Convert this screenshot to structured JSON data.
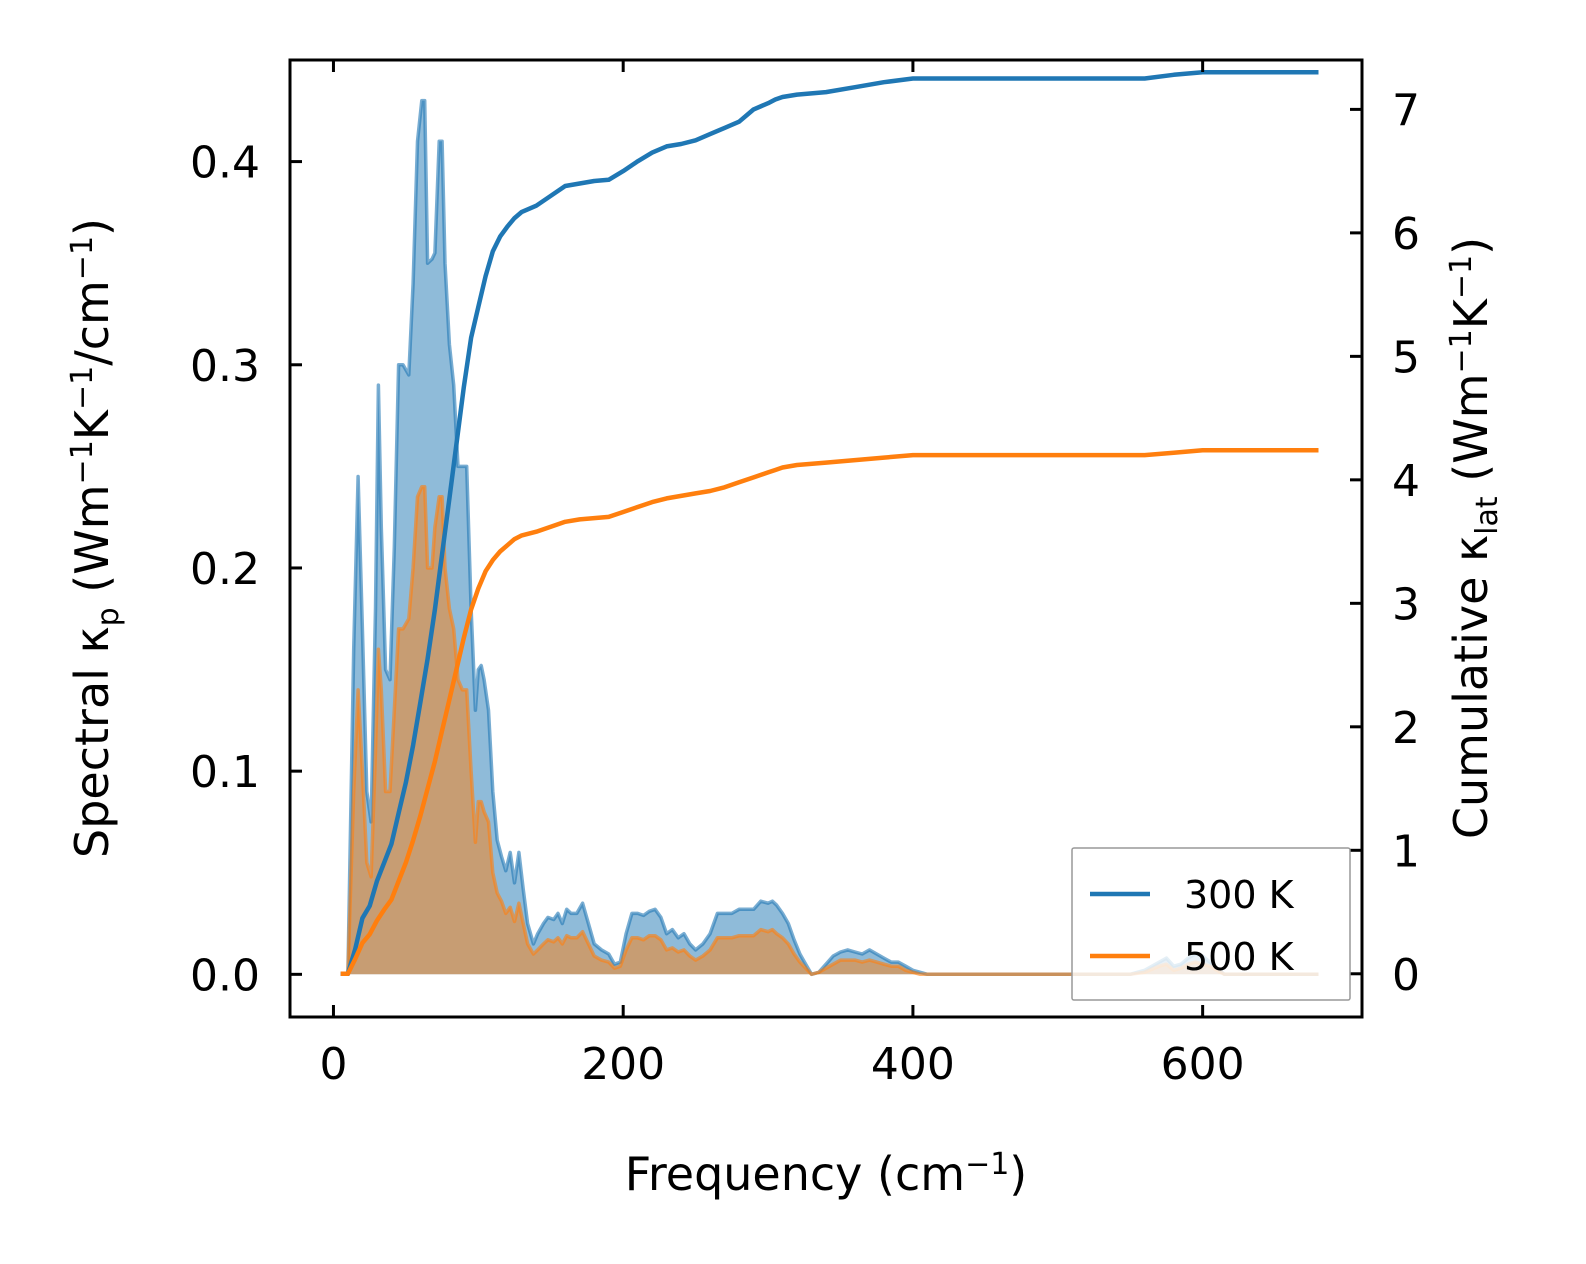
{
  "chart_data": {
    "type": "line",
    "xlabel": "Frequency (cm",
    "xlabel_sup": "−1",
    "xlabel_tail": ")",
    "xlim": [
      -30,
      710
    ],
    "x_ticks": [
      0,
      200,
      400,
      600
    ],
    "x_tick_labels": [
      "0",
      "200",
      "400",
      "600"
    ],
    "left_axis": {
      "label_parts": [
        {
          "t": "Spectral κ"
        },
        {
          "t": "p",
          "sub": true
        },
        {
          "t": " (Wm"
        },
        {
          "t": "−1",
          "sup": true
        },
        {
          "t": "K"
        },
        {
          "t": "−1",
          "sup": true
        },
        {
          "t": "/cm"
        },
        {
          "t": "−1",
          "sup": true
        },
        {
          "t": ")"
        }
      ],
      "ylim": [
        -0.021,
        0.45
      ],
      "ticks": [
        0.0,
        0.1,
        0.2,
        0.3,
        0.4
      ],
      "tick_labels": [
        "0.0",
        "0.1",
        "0.2",
        "0.3",
        "0.4"
      ]
    },
    "right_axis": {
      "label_parts": [
        {
          "t": "Cumulative κ"
        },
        {
          "t": "lat",
          "sub": true
        },
        {
          "t": " (Wm"
        },
        {
          "t": "−1",
          "sup": true
        },
        {
          "t": "K"
        },
        {
          "t": "−1",
          "sup": true
        },
        {
          "t": ")"
        }
      ],
      "ylim": [
        -0.35,
        7.4
      ],
      "ticks": [
        0,
        1,
        2,
        3,
        4,
        5,
        6,
        7
      ],
      "tick_labels": [
        "0",
        "1",
        "2",
        "3",
        "4",
        "5",
        "6",
        "7"
      ]
    },
    "spectral_series": [
      {
        "name": "300 K",
        "color": "#1f77b4",
        "x": [
          5,
          10,
          14,
          17,
          20,
          23,
          26,
          29,
          31,
          33,
          36,
          39,
          42,
          45,
          48,
          52,
          55,
          58,
          61,
          63,
          65,
          68,
          70,
          73,
          75,
          77,
          80,
          83,
          86,
          89,
          92,
          95,
          98,
          100,
          102,
          104,
          107,
          110,
          113,
          116,
          119,
          122,
          125,
          128,
          131,
          134,
          138,
          141,
          145,
          148,
          152,
          155,
          158,
          161,
          164,
          168,
          172,
          176,
          180,
          185,
          190,
          194,
          198,
          202,
          206,
          210,
          214,
          218,
          222,
          226,
          230,
          234,
          238,
          242,
          246,
          250,
          255,
          260,
          265,
          270,
          275,
          280,
          285,
          290,
          295,
          300,
          303,
          306,
          310,
          314,
          318,
          322,
          326,
          330,
          335,
          340,
          345,
          350,
          355,
          360,
          365,
          370,
          375,
          380,
          385,
          390,
          395,
          400,
          405,
          410,
          415,
          420,
          450,
          500,
          550,
          560,
          570,
          575,
          580,
          585,
          590,
          595,
          600,
          605,
          610,
          615,
          620,
          640,
          660,
          680
        ],
        "values": [
          0.0,
          0.0,
          0.16,
          0.245,
          0.17,
          0.09,
          0.075,
          0.18,
          0.29,
          0.22,
          0.15,
          0.145,
          0.21,
          0.3,
          0.3,
          0.295,
          0.34,
          0.41,
          0.43,
          0.43,
          0.35,
          0.352,
          0.355,
          0.41,
          0.41,
          0.35,
          0.31,
          0.29,
          0.25,
          0.25,
          0.25,
          0.18,
          0.13,
          0.15,
          0.152,
          0.145,
          0.13,
          0.09,
          0.066,
          0.058,
          0.051,
          0.06,
          0.045,
          0.06,
          0.042,
          0.025,
          0.015,
          0.02,
          0.025,
          0.028,
          0.027,
          0.03,
          0.025,
          0.032,
          0.03,
          0.03,
          0.035,
          0.025,
          0.015,
          0.012,
          0.01,
          0.005,
          0.006,
          0.02,
          0.03,
          0.03,
          0.029,
          0.031,
          0.032,
          0.028,
          0.02,
          0.022,
          0.018,
          0.02,
          0.015,
          0.012,
          0.015,
          0.02,
          0.03,
          0.03,
          0.03,
          0.032,
          0.032,
          0.032,
          0.036,
          0.035,
          0.036,
          0.034,
          0.03,
          0.025,
          0.017,
          0.01,
          0.005,
          0.0,
          0.001,
          0.005,
          0.009,
          0.011,
          0.012,
          0.011,
          0.01,
          0.012,
          0.01,
          0.008,
          0.006,
          0.006,
          0.004,
          0.002,
          0.001,
          0.0,
          0.0,
          0.0,
          0.0,
          0.0,
          0.0,
          0.002,
          0.006,
          0.008,
          0.004,
          0.005,
          0.008,
          0.01,
          0.009,
          0.006,
          0.003,
          0.0,
          0.0,
          0.0,
          0.0,
          0.0
        ]
      },
      {
        "name": "500 K",
        "color": "#ff7f0e",
        "x": [
          5,
          10,
          14,
          17,
          20,
          23,
          26,
          29,
          31,
          33,
          36,
          39,
          42,
          45,
          48,
          52,
          55,
          58,
          61,
          63,
          65,
          68,
          70,
          73,
          75,
          77,
          80,
          83,
          86,
          89,
          92,
          95,
          98,
          100,
          102,
          104,
          107,
          110,
          113,
          116,
          119,
          122,
          125,
          128,
          131,
          134,
          138,
          141,
          145,
          148,
          152,
          155,
          158,
          161,
          164,
          168,
          172,
          176,
          180,
          185,
          190,
          194,
          198,
          202,
          206,
          210,
          214,
          218,
          222,
          226,
          230,
          234,
          238,
          242,
          246,
          250,
          255,
          260,
          265,
          270,
          275,
          280,
          285,
          290,
          295,
          300,
          303,
          306,
          310,
          314,
          318,
          322,
          326,
          330,
          335,
          340,
          345,
          350,
          355,
          360,
          365,
          370,
          375,
          380,
          385,
          390,
          395,
          400,
          405,
          410,
          415,
          420,
          450,
          500,
          550,
          560,
          570,
          575,
          580,
          585,
          590,
          595,
          600,
          605,
          610,
          615,
          620,
          640,
          660,
          680
        ],
        "values": [
          0.0,
          0.0,
          0.09,
          0.14,
          0.1,
          0.055,
          0.048,
          0.11,
          0.16,
          0.14,
          0.09,
          0.09,
          0.13,
          0.17,
          0.17,
          0.175,
          0.2,
          0.235,
          0.24,
          0.24,
          0.2,
          0.2,
          0.22,
          0.235,
          0.235,
          0.2,
          0.18,
          0.17,
          0.145,
          0.14,
          0.14,
          0.1,
          0.065,
          0.085,
          0.085,
          0.08,
          0.075,
          0.05,
          0.04,
          0.036,
          0.03,
          0.033,
          0.026,
          0.035,
          0.025,
          0.015,
          0.01,
          0.012,
          0.015,
          0.017,
          0.016,
          0.018,
          0.015,
          0.019,
          0.018,
          0.018,
          0.021,
          0.015,
          0.009,
          0.007,
          0.006,
          0.003,
          0.004,
          0.012,
          0.018,
          0.018,
          0.017,
          0.019,
          0.019,
          0.017,
          0.012,
          0.013,
          0.011,
          0.012,
          0.009,
          0.007,
          0.009,
          0.012,
          0.018,
          0.018,
          0.018,
          0.019,
          0.019,
          0.019,
          0.022,
          0.021,
          0.022,
          0.02,
          0.018,
          0.015,
          0.01,
          0.006,
          0.003,
          0.0,
          0.001,
          0.003,
          0.005,
          0.007,
          0.007,
          0.007,
          0.006,
          0.007,
          0.006,
          0.005,
          0.004,
          0.004,
          0.002,
          0.001,
          0.0,
          0.0,
          0.0,
          0.0,
          0.0,
          0.0,
          0.0,
          0.001,
          0.004,
          0.005,
          0.002,
          0.003,
          0.005,
          0.006,
          0.005,
          0.004,
          0.002,
          0.0,
          0.0,
          0.0,
          0.0,
          0.0
        ]
      }
    ],
    "cumulative_series": [
      {
        "name": "300 K",
        "color": "#1f77b4",
        "x": [
          5,
          10,
          15,
          20,
          25,
          30,
          35,
          40,
          45,
          50,
          55,
          60,
          65,
          70,
          75,
          80,
          85,
          90,
          95,
          100,
          105,
          110,
          115,
          120,
          125,
          130,
          140,
          150,
          160,
          170,
          180,
          190,
          200,
          210,
          220,
          230,
          240,
          250,
          260,
          270,
          280,
          290,
          300,
          305,
          310,
          320,
          340,
          360,
          380,
          400,
          420,
          450,
          500,
          550,
          560,
          580,
          600,
          620,
          650,
          680
        ],
        "values": [
          0.0,
          0.0,
          0.2,
          0.45,
          0.55,
          0.75,
          0.9,
          1.05,
          1.3,
          1.55,
          1.85,
          2.2,
          2.55,
          2.95,
          3.4,
          3.85,
          4.3,
          4.75,
          5.15,
          5.4,
          5.65,
          5.85,
          5.97,
          6.05,
          6.12,
          6.17,
          6.22,
          6.3,
          6.38,
          6.4,
          6.42,
          6.43,
          6.5,
          6.58,
          6.65,
          6.7,
          6.72,
          6.75,
          6.8,
          6.85,
          6.9,
          7.0,
          7.05,
          7.08,
          7.1,
          7.12,
          7.14,
          7.18,
          7.22,
          7.25,
          7.25,
          7.25,
          7.25,
          7.25,
          7.25,
          7.28,
          7.3,
          7.3,
          7.3,
          7.3
        ]
      },
      {
        "name": "500 K",
        "color": "#ff7f0e",
        "x": [
          5,
          10,
          15,
          20,
          25,
          30,
          35,
          40,
          45,
          50,
          55,
          60,
          65,
          70,
          75,
          80,
          85,
          90,
          95,
          100,
          105,
          110,
          115,
          120,
          125,
          130,
          140,
          150,
          160,
          170,
          180,
          190,
          200,
          210,
          220,
          230,
          240,
          250,
          260,
          270,
          280,
          290,
          300,
          305,
          310,
          320,
          340,
          360,
          380,
          400,
          420,
          450,
          500,
          550,
          560,
          580,
          600,
          620,
          650,
          680
        ],
        "values": [
          0.0,
          0.0,
          0.12,
          0.25,
          0.32,
          0.43,
          0.52,
          0.6,
          0.75,
          0.9,
          1.08,
          1.28,
          1.5,
          1.72,
          1.97,
          2.22,
          2.47,
          2.72,
          2.95,
          3.12,
          3.26,
          3.35,
          3.42,
          3.47,
          3.52,
          3.55,
          3.58,
          3.62,
          3.66,
          3.68,
          3.69,
          3.7,
          3.74,
          3.78,
          3.82,
          3.85,
          3.87,
          3.89,
          3.91,
          3.94,
          3.98,
          4.02,
          4.06,
          4.08,
          4.1,
          4.12,
          4.14,
          4.16,
          4.18,
          4.2,
          4.2,
          4.2,
          4.2,
          4.2,
          4.2,
          4.22,
          4.24,
          4.24,
          4.24,
          4.24
        ]
      }
    ],
    "legend": {
      "position": "lower right",
      "entries": [
        {
          "label": "300 K",
          "color": "#1f77b4"
        },
        {
          "label": "500 K",
          "color": "#ff7f0e"
        }
      ]
    }
  }
}
